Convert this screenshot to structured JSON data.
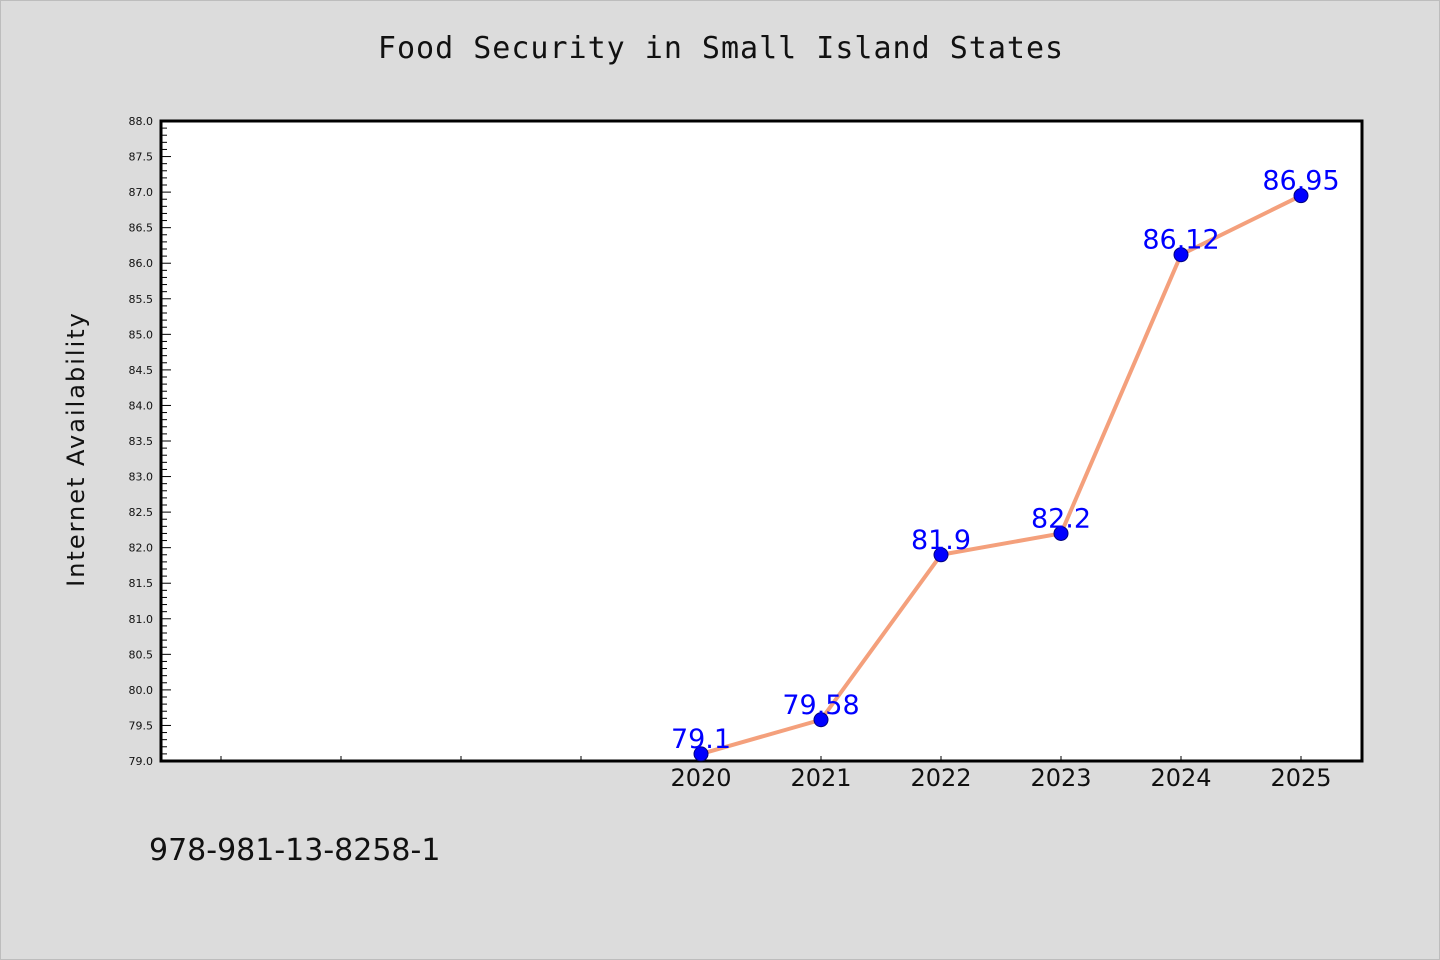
{
  "chart_data": {
    "type": "line",
    "title": "Food Security in Small Island States",
    "xlabel": "",
    "ylabel": "Internet Availability",
    "x": [
      "2020",
      "2021",
      "2022",
      "2023",
      "2024",
      "2025"
    ],
    "series": [
      {
        "values": [
          79.1,
          79.58,
          81.9,
          82.2,
          86.12,
          86.95
        ],
        "line_color": "#f4a07c",
        "marker_color": "#0000ff"
      }
    ],
    "data_labels": [
      "79.1",
      "79.58",
      "81.9",
      "82.2",
      "86.12",
      "86.95"
    ],
    "ylim": [
      79.0,
      88.0
    ],
    "y_ticks": [
      "79.0",
      "79.5",
      "80.0",
      "80.5",
      "81.0",
      "81.5",
      "82.0",
      "82.5",
      "83.0",
      "83.5",
      "84.0",
      "84.5",
      "85.0",
      "85.5",
      "86.0",
      "86.5",
      "87.0",
      "87.5",
      "88.0"
    ],
    "grid": false,
    "legend": "none",
    "data_label_color": "#0000ff"
  },
  "footer": {
    "isbn": "978-981-13-8258-1"
  },
  "colors": {
    "background": "#dcdcdc",
    "plot_background": "#ffffff"
  }
}
